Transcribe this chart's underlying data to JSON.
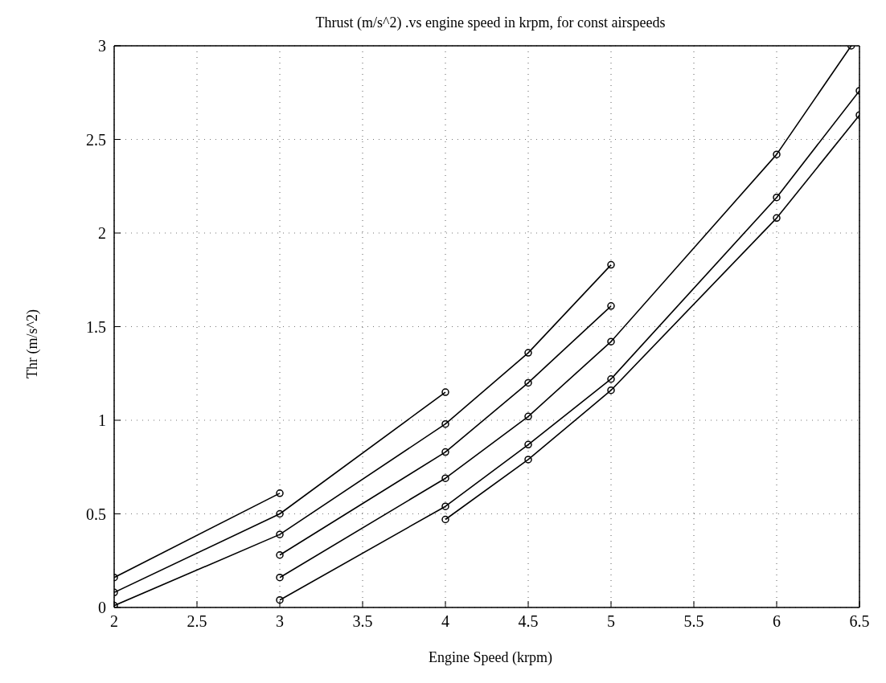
{
  "chart_data": {
    "type": "line",
    "title": "Thrust (m/s^2) .vs engine speed in krpm, for const airspeeds",
    "xlabel": "Engine Speed (krpm)",
    "ylabel": "Thr (m/s^2)",
    "series": [
      {
        "color": "#000000",
        "x": [
          2,
          3
        ],
        "values": [
          0.16,
          0.61
        ]
      },
      {
        "color": "#000000",
        "x": [
          2,
          3,
          4
        ],
        "values": [
          0.08,
          0.5,
          1.15
        ]
      },
      {
        "color": "#000000",
        "x": [
          2,
          3,
          4,
          4.5,
          5
        ],
        "values": [
          0.01,
          0.39,
          0.98,
          1.36,
          1.83
        ]
      },
      {
        "color": "#000000",
        "x": [
          3,
          4,
          4.5,
          5
        ],
        "values": [
          0.28,
          0.83,
          1.2,
          1.61
        ]
      },
      {
        "color": "#000000",
        "x": [
          3,
          4,
          4.5,
          5,
          6,
          6.45
        ],
        "values": [
          0.16,
          0.69,
          1.02,
          1.42,
          2.42,
          3
        ]
      },
      {
        "color": "#000000",
        "x": [
          3,
          4,
          4.5,
          5,
          6,
          6.5
        ],
        "values": [
          0.04,
          0.54,
          0.87,
          1.22,
          2.19,
          2.76
        ]
      },
      {
        "color": "#000000",
        "x": [
          4,
          4.5,
          5,
          6,
          6.5
        ],
        "values": [
          0.47,
          0.79,
          1.16,
          2.08,
          2.63
        ]
      }
    ],
    "xlim": [
      2,
      6.5
    ],
    "xticks": [
      2,
      2.5,
      3,
      3.5,
      4,
      4.5,
      5,
      5.5,
      6,
      6.5
    ],
    "ylim": [
      0,
      3
    ],
    "yticks": [
      0,
      0.5,
      1,
      1.5,
      2,
      2.5,
      3
    ],
    "grid": true,
    "marker": "circle",
    "line_style": "solid"
  }
}
